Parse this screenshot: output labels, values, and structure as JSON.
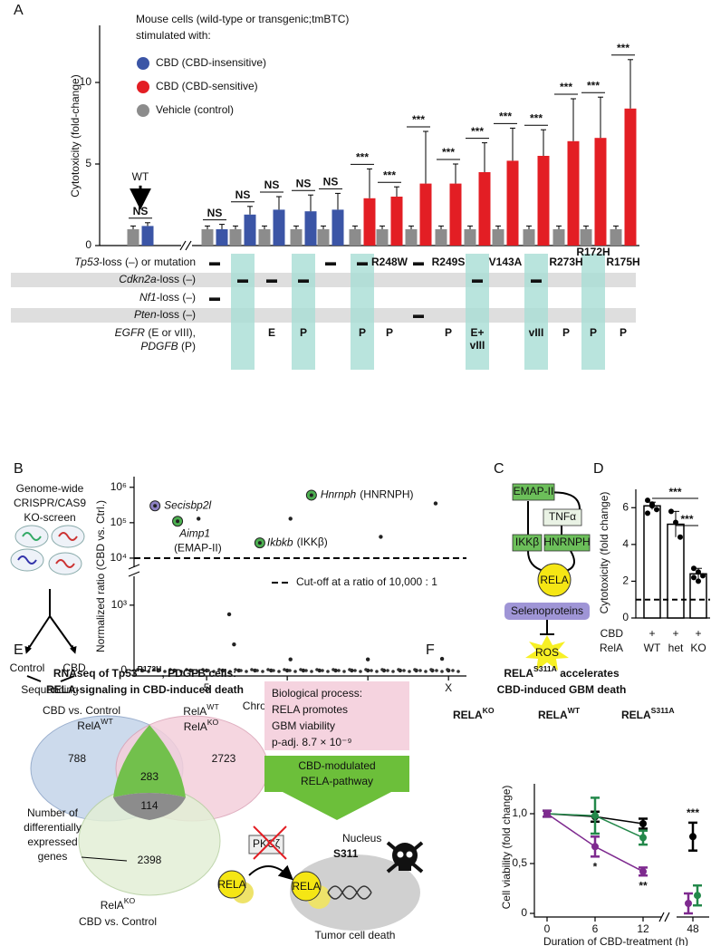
{
  "chart_data": [
    {
      "type": "bar",
      "panel": "A",
      "ylabel": "Cytotoxicity (fold-change)",
      "legend_title": [
        "Mouse cells (wild-type or transgenic;tmBTC)",
        "stimulated with:"
      ],
      "categories": [
        "WT",
        null,
        null,
        null,
        null,
        null,
        null,
        null,
        null,
        null,
        null,
        null,
        null,
        null,
        null,
        null
      ],
      "series": [
        {
          "name": "CBD (CBD-insensitive)",
          "color": "#3b55a6",
          "values": [
            1.2,
            1.0,
            1.9,
            2.2,
            2.1,
            2.2,
            null,
            null,
            null,
            null,
            null,
            null,
            null,
            null,
            null,
            null
          ],
          "errors": [
            0.2,
            0.3,
            0.5,
            0.8,
            1.0,
            1.0,
            null,
            null,
            null,
            null,
            null,
            null,
            null,
            null,
            null,
            null
          ]
        },
        {
          "name": "CBD (CBD-sensitive)",
          "color": "#e31e24",
          "values": [
            null,
            null,
            null,
            null,
            null,
            null,
            2.9,
            3.0,
            3.8,
            3.8,
            4.5,
            5.2,
            5.5,
            6.4,
            6.6,
            8.4
          ],
          "errors": [
            null,
            null,
            null,
            null,
            null,
            null,
            1.8,
            0.6,
            3.2,
            1.2,
            1.8,
            2.0,
            1.6,
            2.6,
            2.5,
            3.0
          ]
        },
        {
          "name": "Vehicle (control)",
          "color": "#8c8c8c",
          "values": [
            1.0,
            1.0,
            1.0,
            1.0,
            1.0,
            1.0,
            1.0,
            1.0,
            1.0,
            1.0,
            1.0,
            1.0,
            1.0,
            1.0,
            1.0,
            1.0
          ],
          "errors": [
            0.2,
            0.2,
            0.2,
            0.2,
            0.2,
            0.2,
            0.2,
            0.2,
            0.2,
            0.2,
            0.2,
            0.2,
            0.2,
            0.2,
            0.2,
            0.2
          ]
        }
      ],
      "significance": [
        "NS",
        "NS",
        "NS",
        "NS",
        "NS",
        "NS",
        "***",
        "***",
        "***",
        "***",
        "***",
        "***",
        "***",
        "***",
        "***",
        "***"
      ],
      "ylim": [
        0,
        13.5
      ],
      "yticks": [
        0,
        5,
        10
      ],
      "table": {
        "rows": [
          {
            "lines": [
              [
                {
                  "text": "Tp53",
                  "italic": true
                },
                {
                  "text": "-loss (–) or mutation"
                }
              ]
            ],
            "cells": [
              null,
              "▬",
              null,
              null,
              null,
              "▬",
              "▬",
              "R248W",
              "▬",
              "R249S",
              null,
              "V143A",
              null,
              "R273H",
              "R172H",
              "R175H"
            ]
          },
          {
            "lines": [
              [
                {
                  "text": "Cdkn2a",
                  "italic": true
                },
                {
                  "text": "-loss (–)"
                }
              ]
            ],
            "cells": [
              null,
              null,
              "▬",
              "▬",
              "▬",
              null,
              null,
              null,
              null,
              null,
              "▬",
              null,
              "▬",
              null,
              null,
              null
            ]
          },
          {
            "lines": [
              [
                {
                  "text": "Nf1",
                  "italic": true
                },
                {
                  "text": "-loss (–)"
                }
              ]
            ],
            "cells": [
              null,
              "▬",
              null,
              null,
              null,
              null,
              null,
              null,
              null,
              null,
              null,
              null,
              null,
              null,
              null,
              null
            ]
          },
          {
            "lines": [
              [
                {
                  "text": "Pten",
                  "italic": true
                },
                {
                  "text": "-loss (–)"
                }
              ]
            ],
            "cells": [
              null,
              null,
              null,
              null,
              null,
              null,
              null,
              null,
              "▬",
              null,
              null,
              null,
              null,
              null,
              null,
              null
            ]
          },
          {
            "lines": [
              [
                {
                  "text": "EGFR",
                  "italic": true
                },
                {
                  "text": " (E or vIII),"
                }
              ],
              [
                {
                  "text": "PDGFB",
                  "italic": true
                },
                {
                  "text": " (P)"
                }
              ]
            ],
            "cells": [
              null,
              null,
              null,
              "E",
              "P",
              null,
              "P",
              "P",
              null,
              "P",
              [
                "E+",
                "vIII"
              ],
              null,
              "vIII",
              "P",
              "P",
              "P"
            ]
          }
        ]
      }
    },
    {
      "type": "scatter",
      "panel": "B",
      "ylabel": "Normalized ratio (CBD vs. Ctrl.)",
      "xlabel": "Chromosomes (X = 20)",
      "screen": {
        "lines": [
          "Genome-wide",
          "CRISPR/CAS9",
          "KO-screen"
        ],
        "branches": [
          "Control",
          "CBD"
        ],
        "result": "Sequencing"
      },
      "x": [
        4.5,
        10.2,
        15.8,
        19.2,
        6.4,
        6.7,
        10.2,
        15.0,
        19.6,
        1,
        2,
        3,
        4,
        5,
        6,
        7,
        8,
        9,
        10,
        11,
        12,
        13,
        14,
        15,
        16,
        17,
        18,
        19,
        20
      ],
      "values": [
        130000,
        130000,
        40000,
        350000,
        860,
        400,
        170,
        170,
        180,
        0,
        0,
        0,
        0,
        0,
        0,
        0,
        0,
        0,
        0,
        0,
        0,
        0,
        0,
        0,
        0,
        0,
        0,
        0,
        0
      ],
      "color": "#222222",
      "annotations": [
        {
          "x": 1.8,
          "y": 300000,
          "gene": "Secisbp2l",
          "color": "#8e82c4"
        },
        {
          "x": 3.2,
          "y": 110000,
          "gene": "Aimp1",
          "protein": "(EMAP-II)",
          "color": "#4caf50"
        },
        {
          "x": 8.3,
          "y": 27000,
          "gene": "Ikbkb",
          "protein": "(IKKβ)",
          "color": "#4caf50"
        },
        {
          "x": 11.5,
          "y": 600000,
          "gene": "Hnrnph",
          "protein": "(HNRNPH)",
          "color": "#4caf50"
        }
      ],
      "cutoff": {
        "value": 10000,
        "label": "Cut-off at a ratio of 10,000 : 1"
      },
      "ylim": [
        0,
        2000000
      ],
      "y_break": [
        1400,
        7000
      ],
      "yscale_lower": "linear",
      "yscale_upper": "log",
      "yticks": [
        0,
        {
          "value": 1000,
          "label": "10³"
        },
        {
          "value": 10000,
          "label": "10⁴"
        },
        {
          "value": 100000,
          "label": "10⁵"
        },
        {
          "value": 1000000,
          "label": "10⁶"
        }
      ],
      "xlim": [
        0.5,
        21
      ],
      "xticks": [
        5,
        10,
        15,
        {
          "value": 20,
          "label": "X"
        }
      ]
    },
    {
      "type": "bar",
      "panel": "D",
      "ylabel": "Cytotoxicity (fold change)",
      "row_labels": [
        "CBD",
        "RelA"
      ],
      "cbd_marks": [
        "+",
        "+",
        "+"
      ],
      "categories": [
        "WT",
        "het",
        "KO"
      ],
      "values": [
        6.1,
        5.1,
        2.4
      ],
      "errors": [
        0.2,
        0.7,
        0.3
      ],
      "points": [
        [
          6.4,
          6.2,
          5.9,
          5.7,
          6.1
        ],
        [
          5.8,
          5.2,
          4.4
        ],
        [
          2.7,
          2.5,
          2.3,
          2.2,
          2.0
        ]
      ],
      "reference": 1,
      "ylim": [
        0,
        7
      ],
      "yticks": [
        0,
        2,
        4,
        6
      ],
      "significance": [
        {
          "from": 0,
          "to": 2,
          "label": "***"
        },
        {
          "from": 1,
          "to": 2,
          "label": "***"
        }
      ]
    },
    {
      "type": "line",
      "panel": "F",
      "title": [
        [
          {
            "text": "RELA"
          },
          {
            "text": "S311A",
            "sup": true
          },
          {
            "text": " accelerates"
          }
        ],
        [
          {
            "text": "CBD-induced GBM death"
          }
        ]
      ],
      "xlabel": "Duration of CBD-treatment (h)",
      "ylabel": "Cell viability (fold change)",
      "x": [
        0,
        6,
        12,
        48
      ],
      "xlim": [
        -1.5,
        50
      ],
      "xticks": [
        0,
        6,
        12,
        48
      ],
      "x_break": [
        12,
        48
      ],
      "ylim": [
        0,
        1.3
      ],
      "yticks": [
        0,
        {
          "value": 0.5,
          "label": "0,5"
        },
        {
          "value": 1,
          "label": "1,0"
        }
      ],
      "series": [
        {
          "name": "RELA",
          "name_sup": "KO",
          "color": "#000000",
          "values": [
            1.0,
            0.97,
            0.9,
            0.77
          ],
          "errors": [
            0.03,
            0.05,
            0.05,
            0.14
          ]
        },
        {
          "name": "RELA",
          "name_sup": "WT",
          "color": "#23884a",
          "values": [
            1.0,
            0.98,
            0.76,
            0.18
          ],
          "errors": [
            0.03,
            0.18,
            0.07,
            0.1
          ]
        },
        {
          "name": "RELA",
          "name_sup": "S311A",
          "color": "#7e2a8f",
          "values": [
            1.0,
            0.67,
            0.42,
            0.1
          ],
          "errors": [
            0.03,
            0.1,
            0.04,
            0.1
          ]
        }
      ],
      "significance": [
        {
          "series": 2,
          "index": 1,
          "label": "*"
        },
        {
          "series": 2,
          "index": 2,
          "label": "**"
        },
        {
          "series": 0,
          "index": 3,
          "label": "***"
        }
      ]
    }
  ],
  "diagrams": {
    "C": {
      "panel": "C",
      "nodes": {
        "emap": "EMAP-II",
        "tnf": "TNFα",
        "ikk": "IKKβ",
        "hnrnph": "HNRNPH",
        "rela": "RELA",
        "seleno": "Selenoproteins",
        "ros": "ROS"
      }
    },
    "E": {
      "panel": "E",
      "title": [
        [
          {
            "text": "RNAseq of Tp53"
          },
          {
            "text": "R172H",
            "sup": true
          },
          {
            "text": ", PDGFB cells:"
          }
        ],
        [
          {
            "text": "RELA-signaling in CBD-induced death"
          }
        ]
      ],
      "venn": {
        "caption_top": "CBD vs. Control",
        "label_a": {
          "name": "RelA",
          "sup": "WT"
        },
        "label_b": [
          {
            "name": "RelA",
            "sup": "WT"
          },
          {
            "name": "RelA",
            "sup": "KO"
          }
        ],
        "label_c": {
          "name": "RelA",
          "sup": "KO"
        },
        "caption_bottom": "CBD vs. Control",
        "counts": {
          "a": 788,
          "b": 2723,
          "ab": 283,
          "abc": 114,
          "c": 2398
        },
        "note": [
          "Number of",
          "differentially",
          "expressed",
          "genes"
        ]
      },
      "box": [
        "Biological process:",
        "RELA promotes",
        "GBM viability",
        "p-adj. 8.7 × 10⁻⁹"
      ],
      "arrow_box": [
        "CBD-modulated",
        "RELA-pathway"
      ],
      "mechanism": {
        "kinase": "PKCζ",
        "nucleus": "Nucleus",
        "site": "S311",
        "protein": "RELA",
        "outcome": "Tumor cell death"
      }
    }
  }
}
